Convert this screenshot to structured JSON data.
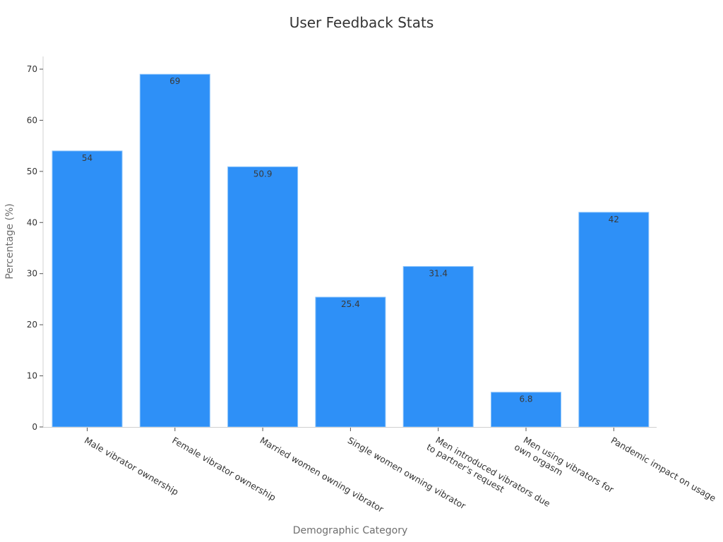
{
  "chart_data": {
    "type": "bar",
    "title": "User Feedback Stats",
    "xlabel": "Demographic Category",
    "ylabel": "Percentage (%)",
    "ylim": [
      0,
      72
    ],
    "yticks": [
      0,
      10,
      20,
      30,
      40,
      50,
      60,
      70
    ],
    "grid": false,
    "legend": null,
    "bar_color": "#2e90f7",
    "categories": [
      "Male vibrator ownership",
      "Female vibrator ownership",
      "Married women owning vibrator",
      "Single women owning vibrator",
      "Men introduced vibrators due to partner's request",
      "Men using vibrators for own orgasm",
      "Pandemic impact on usage"
    ],
    "category_lines": [
      [
        "Male vibrator ownership"
      ],
      [
        "Female vibrator ownership"
      ],
      [
        "Married women owning vibrator"
      ],
      [
        "Single women owning vibrator"
      ],
      [
        "Men introduced vibrators due",
        "to partner's request"
      ],
      [
        "Men using vibrators for",
        "own orgasm"
      ],
      [
        "Pandemic impact on usage"
      ]
    ],
    "values": [
      54,
      69,
      50.9,
      25.4,
      31.4,
      6.8,
      42
    ],
    "value_labels": [
      "54",
      "69",
      "50.9",
      "25.4",
      "31.4",
      "6.8",
      "42"
    ]
  }
}
